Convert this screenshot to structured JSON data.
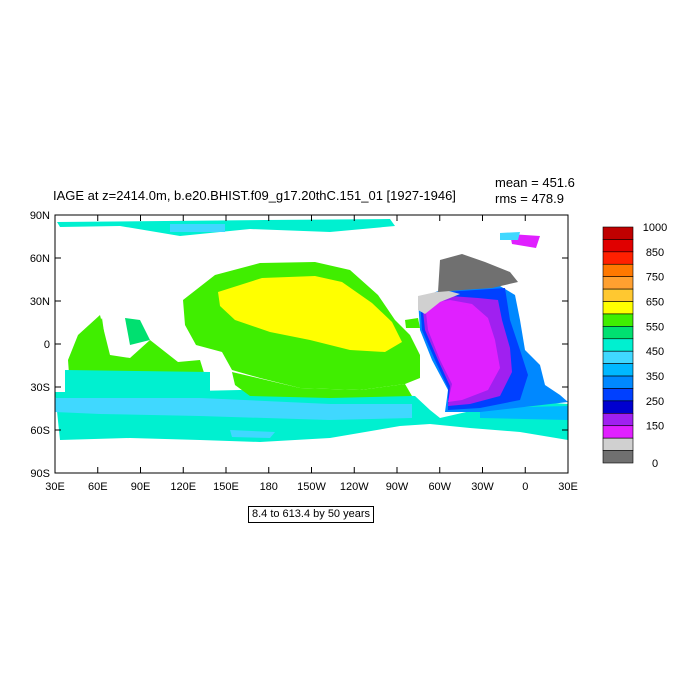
{
  "title": "IAGE at z=2414.0m, b.e20.BHIST.f09_g17.20thC.151_01 [1927-1946]",
  "stats": {
    "mean": "mean = 451.6",
    "rms": "rms = 478.9"
  },
  "subtitle": "8.4 to 613.4 by 50 years",
  "map": {
    "lon_ticks": [
      "30E",
      "60E",
      "90E",
      "120E",
      "150E",
      "180",
      "150W",
      "120W",
      "90W",
      "60W",
      "30W",
      "0",
      "30E"
    ],
    "lat_ticks": [
      "90N",
      "60N",
      "30N",
      "0",
      "30S",
      "60S",
      "90S"
    ]
  },
  "colorbar": {
    "labels": [
      "1000",
      "850",
      "750",
      "650",
      "550",
      "450",
      "350",
      "250",
      "150",
      "0"
    ],
    "colors": [
      "#c00000",
      "#e00000",
      "#ff2000",
      "#ff7800",
      "#ffa030",
      "#ffc830",
      "#ffff00",
      "#40ee00",
      "#00e070",
      "#00f0d0",
      "#40d8ff",
      "#00b8ff",
      "#0088ff",
      "#0040ff",
      "#0000d0",
      "#a020f0",
      "#e020ff",
      "#d0d0d0",
      "#707070"
    ]
  }
}
